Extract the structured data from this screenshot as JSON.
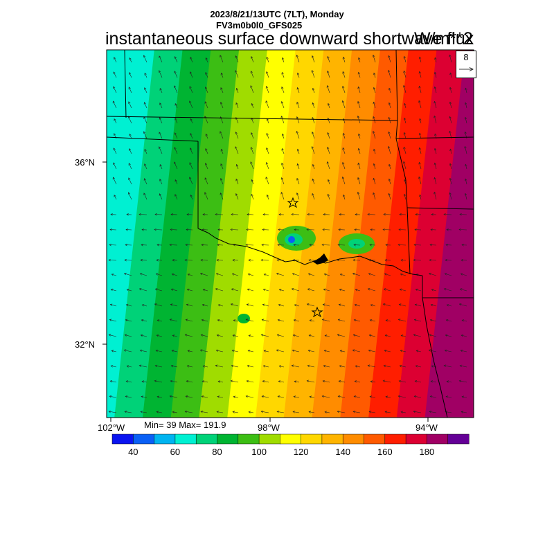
{
  "header": {
    "datetime": "2023/8/21/13UTC (7LT), Monday",
    "model": "FV3m0b0l0_GFS025"
  },
  "title": "instantaneous surface downward shortwave flux",
  "units": "W/m**2",
  "stats": "Min= 39 Max= 191.9",
  "vector_key": {
    "label": "8"
  },
  "axes": {
    "lat_labels": [
      "36°N",
      "32°N"
    ],
    "lon_labels": [
      "102°W",
      "98°W",
      "94°W"
    ]
  },
  "colorbar": {
    "colors": [
      "#0a14f0",
      "#0a60f5",
      "#00b4f0",
      "#00f0d2",
      "#00d278",
      "#00b432",
      "#3cbe14",
      "#a0dc00",
      "#ffff00",
      "#ffd700",
      "#ffb400",
      "#ff8c00",
      "#ff5a00",
      "#ff1e00",
      "#dc0032",
      "#a00064",
      "#640096"
    ],
    "tick_labels": [
      "40",
      "60",
      "80",
      "100",
      "120",
      "140",
      "160",
      "180"
    ]
  },
  "map": {
    "field_colors_west_to_east": [
      "#00f0d2",
      "#00d278",
      "#00b432",
      "#3cbe14",
      "#a0dc00",
      "#ffff00",
      "#ffd700",
      "#ffb400",
      "#ff8c00",
      "#ff5a00",
      "#ff1e00",
      "#dc0032",
      "#a00064"
    ],
    "markers": [
      "star",
      "star"
    ]
  }
}
